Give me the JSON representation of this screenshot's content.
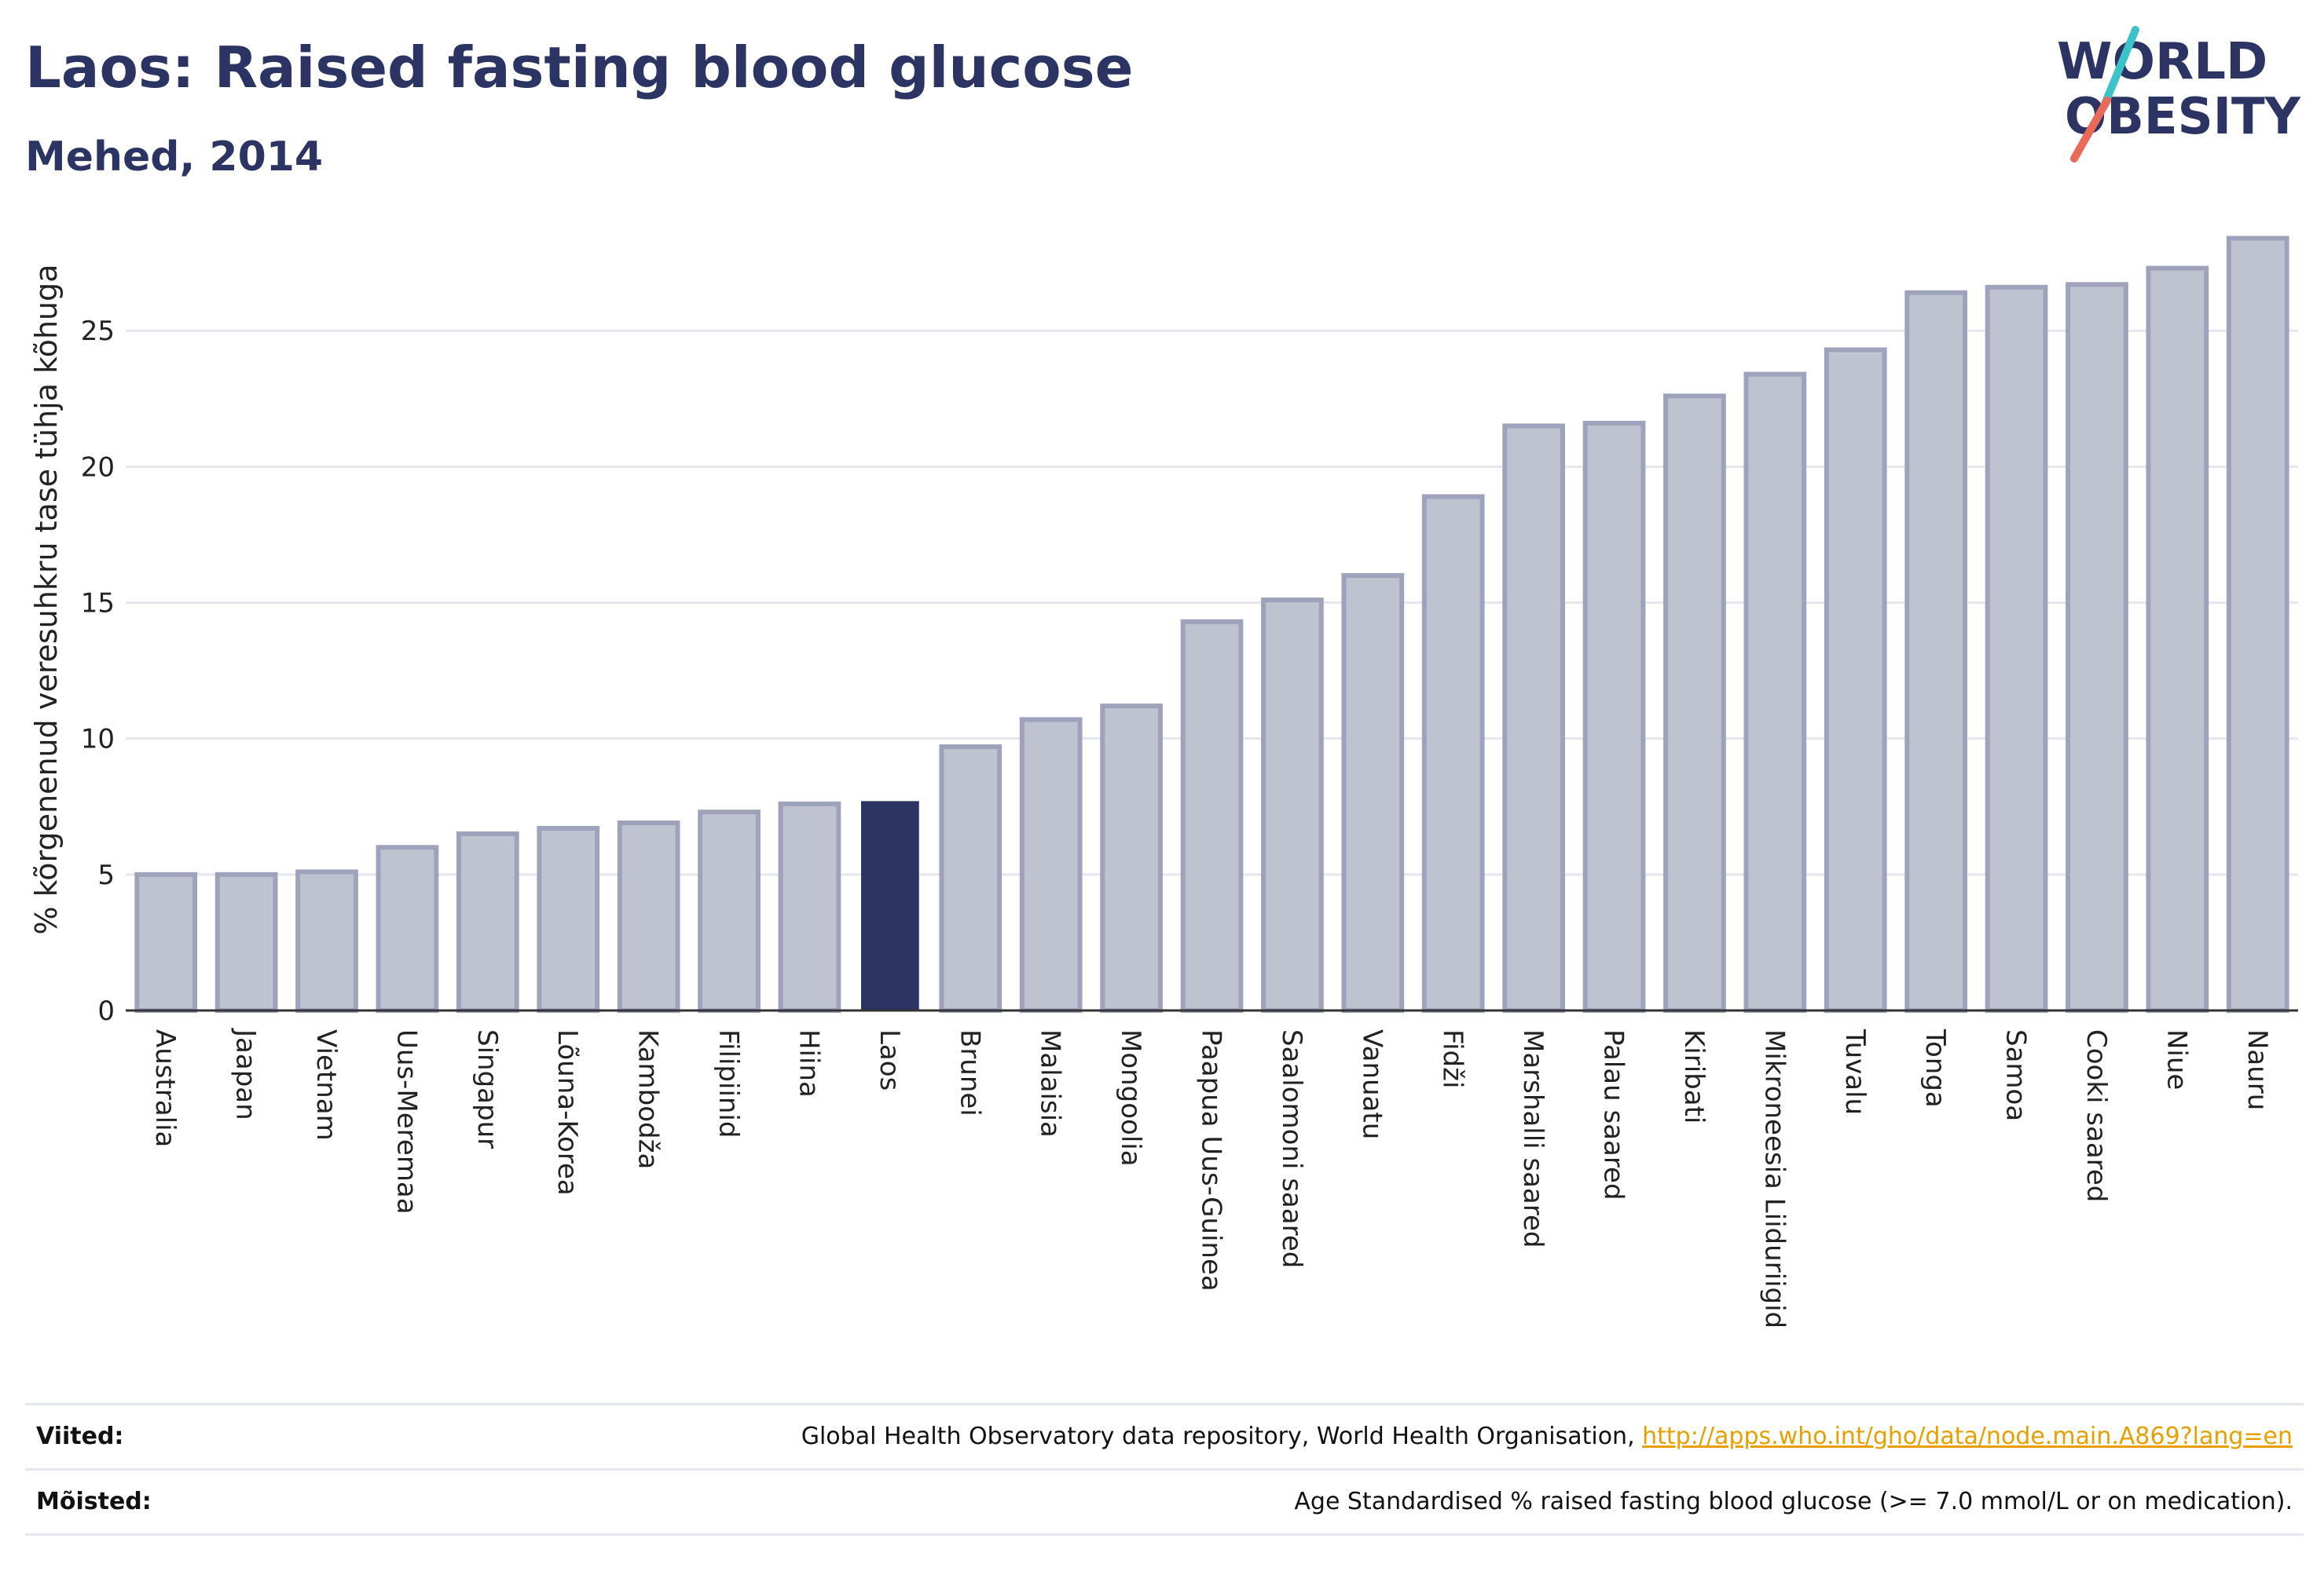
{
  "header": {
    "title": "Laos: Raised fasting blood glucose",
    "subtitle": "Mehed, 2014"
  },
  "logo": {
    "line1": "WORLD",
    "line2": "OBESITY",
    "colors": {
      "text": "#2b3462",
      "teal": "#3cc2c8",
      "coral": "#ea6a5a"
    }
  },
  "chart_data": {
    "type": "bar",
    "title": "Laos: Raised fasting blood glucose",
    "subtitle": "Mehed, 2014",
    "xlabel": "",
    "ylabel": "% kõrgenenud veresuhkru tase tühja kõhuga",
    "ylim": [
      0,
      28.5
    ],
    "yticks": [
      0,
      5,
      10,
      15,
      20,
      25
    ],
    "grid": true,
    "highlight": "Laos",
    "colors": {
      "bar_fill": "#bfc2cf",
      "bar_stroke": "#9ea3bb",
      "highlight": "#2b3462",
      "grid": "#e6e7ee"
    },
    "categories": [
      "Australia",
      "Jaapan",
      "Vietnam",
      "Uus-Meremaa",
      "Singapur",
      "Lõuna-Korea",
      "Kambodža",
      "Filipiinid",
      "Hiina",
      "Laos",
      "Brunei",
      "Malaisia",
      "Mongoolia",
      "Paapua Uus-Guinea",
      "Saalomoni saared",
      "Vanuatu",
      "Fidži",
      "Marshalli saared",
      "Palau saared",
      "Kiribati",
      "Mikroneesia Liiduriigid",
      "Tuvalu",
      "Tonga",
      "Samoa",
      "Cooki saared",
      "Niue",
      "Nauru"
    ],
    "values": [
      5.0,
      5.0,
      5.1,
      6.0,
      6.5,
      6.7,
      6.9,
      7.3,
      7.6,
      7.7,
      9.7,
      10.7,
      11.2,
      14.3,
      15.1,
      16.0,
      18.9,
      21.5,
      21.6,
      22.6,
      23.4,
      24.3,
      26.4,
      26.6,
      26.7,
      27.3,
      28.4
    ]
  },
  "footer": {
    "sources_label": "Viited:",
    "sources_text": "Global Health Observatory data repository, World Health Organisation, ",
    "sources_link": "http://apps.who.int/gho/data/node.main.A869?lang=en",
    "definitions_label": "Mõisted:",
    "definitions_text": "Age Standardised % raised fasting blood glucose (>= 7.0 mmol/L or on medication)."
  }
}
